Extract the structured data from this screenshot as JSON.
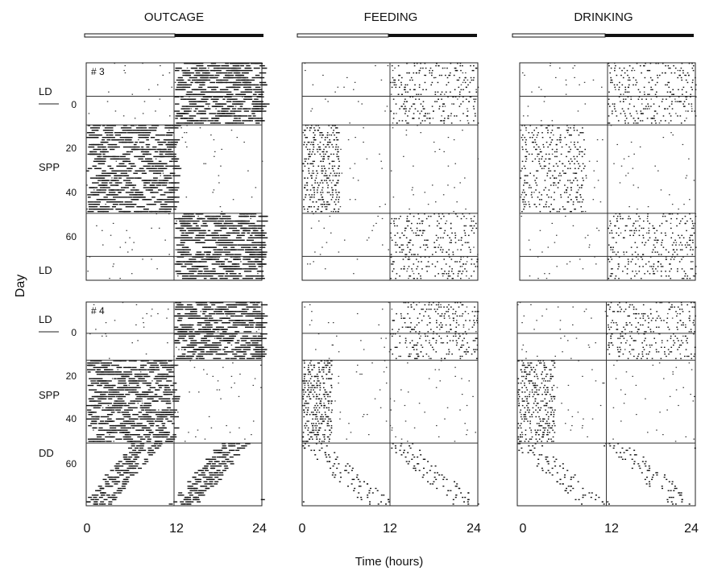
{
  "figure": {
    "column_titles": [
      "OUTCAGE",
      "FEEDING",
      "DRINKING"
    ],
    "y_axis_label": "Day",
    "x_axis_label": "Time (hours)",
    "x_ticks": [
      "0",
      "12",
      "24"
    ],
    "y_ticks": [
      "0",
      "20",
      "40",
      "60"
    ]
  },
  "chart_data": {
    "type": "actogram",
    "x_range_hours": [
      0,
      24
    ],
    "day_range": [
      -14,
      77
    ],
    "panels": [
      {
        "animal": "# 3",
        "conditions": [
          {
            "label": "LD",
            "start_day": -14,
            "end_day": 12
          },
          {
            "label": "SPP",
            "start_day": 12,
            "end_day": 49
          },
          {
            "label": "LD",
            "start_day": 67,
            "end_day": 77
          }
        ],
        "schedule": [
          {
            "start_day": -14,
            "end_day": 12,
            "light": [
              0,
              12
            ],
            "dark": [
              12,
              24
            ]
          },
          {
            "start_day": 12,
            "end_day": 49,
            "skeleton": true
          },
          {
            "start_day": 49,
            "end_day": 77,
            "light": [
              0,
              12
            ],
            "dark": [
              12,
              24
            ]
          }
        ],
        "activity": {
          "outcage": {
            "active_phase_hours": [
              12,
              24
            ],
            "spp_active_hours": [
              0,
              12
            ],
            "density": "high"
          },
          "feeding": {
            "active_phase_hours": [
              12,
              24
            ],
            "spp_active_hours": [
              0,
              5
            ],
            "density": "medium"
          },
          "drinking": {
            "active_phase_hours": [
              12,
              24
            ],
            "spp_active_hours": [
              0,
              9
            ],
            "density": "medium"
          }
        }
      },
      {
        "animal": "# 4",
        "conditions": [
          {
            "label": "LD",
            "start_day": -14,
            "end_day": 12
          },
          {
            "label": "SPP",
            "start_day": 12,
            "end_day": 49
          },
          {
            "label": "DD",
            "start_day": 49,
            "end_day": 77
          }
        ],
        "schedule": [
          {
            "start_day": -14,
            "end_day": 12,
            "light": [
              0,
              12
            ],
            "dark": [
              12,
              24
            ]
          },
          {
            "start_day": 12,
            "end_day": 49,
            "skeleton": true
          },
          {
            "start_day": 49,
            "end_day": 77,
            "constant_dark": true
          }
        ],
        "activity": {
          "outcage": {
            "active_phase_hours": [
              12,
              24
            ],
            "spp_active_hours": [
              0,
              12
            ],
            "free_run_drift_hours_per_day": -0.25
          },
          "feeding": {
            "active_phase_hours": [
              12,
              24
            ],
            "spp_active_hours": [
              0,
              4
            ],
            "free_run_drift_hours_per_day": 0.35
          },
          "drinking": {
            "active_phase_hours": [
              12,
              24
            ],
            "spp_active_hours": [
              0,
              5
            ],
            "free_run_drift_hours_per_day": 0.35
          }
        }
      }
    ]
  }
}
